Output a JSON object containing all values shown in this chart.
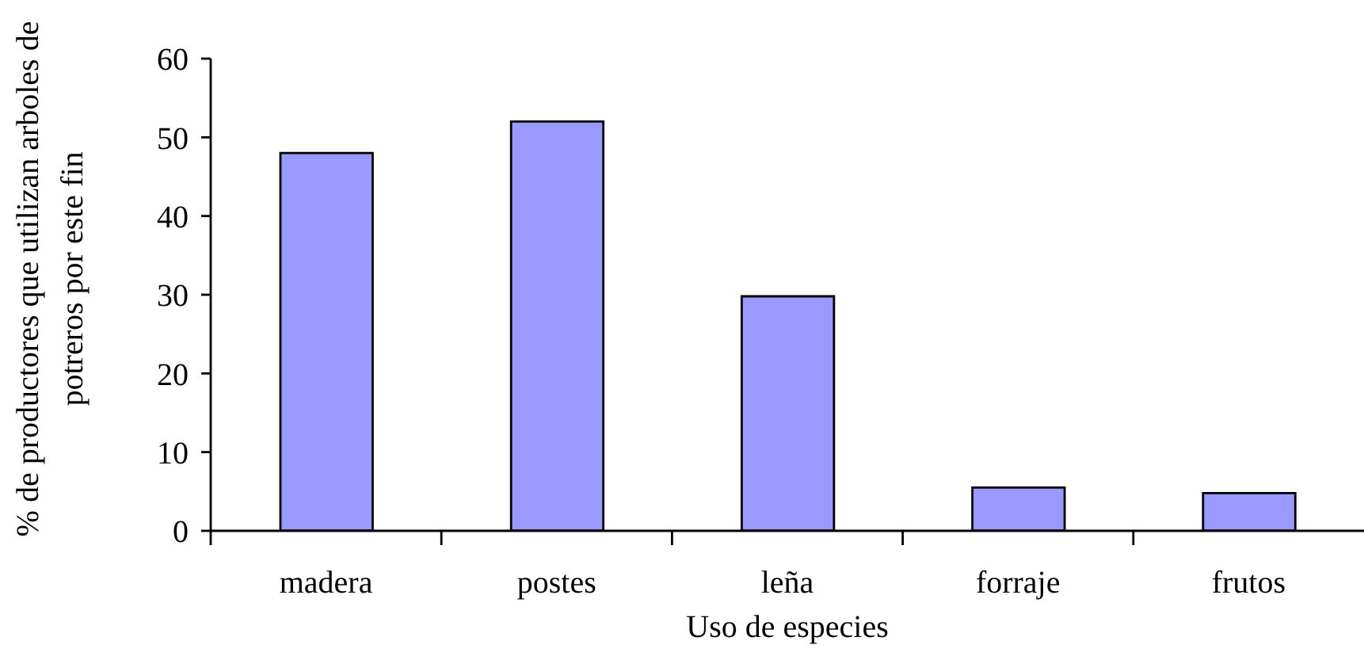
{
  "chart_data": {
    "type": "bar",
    "xlabel": "Uso de especies",
    "ylabel": "% de productores que utilizan arboles de potreros por este fin",
    "categories": [
      "madera",
      "postes",
      "leña",
      "forraje",
      "frutos"
    ],
    "values": [
      48,
      52,
      29.8,
      5.5,
      4.8
    ],
    "color": "#9999ff",
    "ylim": [
      0,
      60
    ],
    "yticks": [
      0,
      10,
      20,
      30,
      40,
      50,
      60
    ]
  }
}
